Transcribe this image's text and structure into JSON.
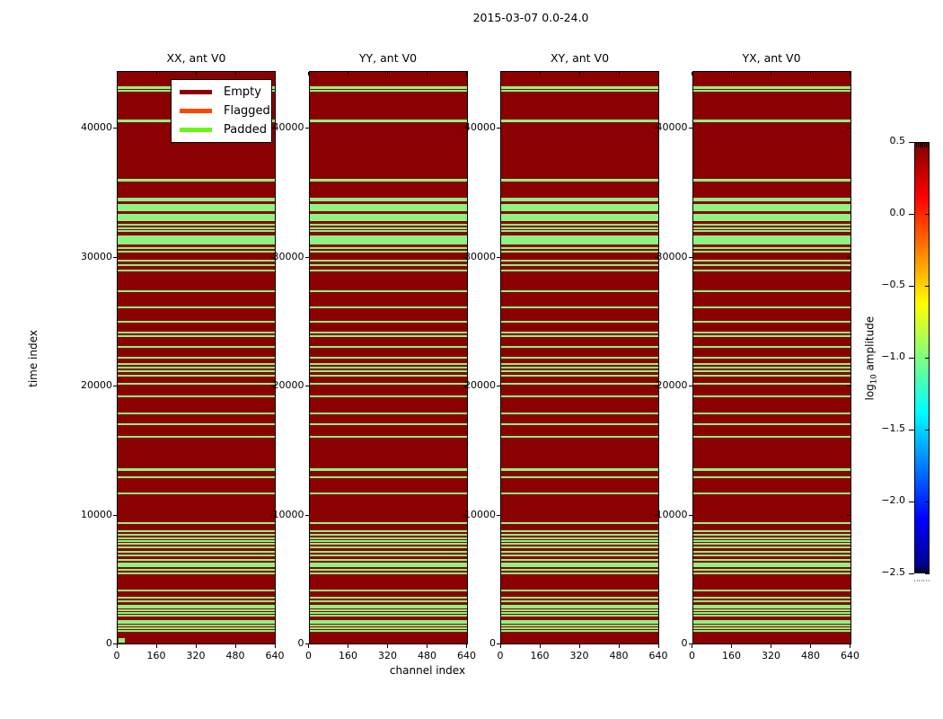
{
  "figure_title": "2015-03-07 0.0-24.0",
  "axis": {
    "xlabel": "channel index",
    "ylabel": "time index",
    "x_tick_labels": [
      "0",
      "160",
      "320",
      "480",
      "640"
    ],
    "y_tick_labels": [
      "0",
      "10000",
      "20000",
      "30000",
      "40000"
    ]
  },
  "legend": {
    "items": [
      {
        "label": "Empty",
        "color": "#8b0000"
      },
      {
        "label": "Flagged",
        "color": "#ff4500"
      },
      {
        "label": "Padded",
        "color": "#6ff31a"
      }
    ]
  },
  "colorbar": {
    "label_log": "log",
    "label_sub": "10",
    "label_rest": " amplitude",
    "tick_labels": [
      "0.5",
      "0.0",
      "−0.5",
      "−1.0",
      "−1.5",
      "−2.0",
      "−2.5"
    ]
  },
  "chart_data": {
    "type": "heatmap",
    "title": "2015-03-07 0.0-24.0",
    "panel_titles": [
      "XX, ant V0",
      "YY, ant V0",
      "XY, ant V0",
      "YX, ant V0"
    ],
    "xlabel": "channel index",
    "ylabel": "time index",
    "xlim": [
      0,
      640
    ],
    "ylim": [
      0,
      44460
    ],
    "x_ticks": [
      0,
      160,
      320,
      480,
      640
    ],
    "y_ticks": [
      0,
      10000,
      20000,
      30000,
      40000
    ],
    "legend_categories": [
      "Empty",
      "Flagged",
      "Padded"
    ],
    "colors": {
      "empty": "#8b0000",
      "flagged": "#ff4500",
      "padded_legend": "#6ff31a",
      "padded_stripe": "#8cf580"
    },
    "colorbar": {
      "label": "log10 amplitude",
      "range": [
        -2.5,
        0.5
      ],
      "ticks": [
        0.5,
        0.0,
        -0.5,
        -1.0,
        -1.5,
        -2.0,
        -2.5
      ],
      "colormap": "jet"
    },
    "note": "All four panels show the same padded-row pattern on an Empty (dark red) background",
    "padded_time_ranges": [
      [
        43150,
        43330
      ],
      [
        42900,
        43080
      ],
      [
        40560,
        40740
      ],
      [
        35930,
        36130
      ],
      [
        34360,
        34640
      ],
      [
        33590,
        34170
      ],
      [
        32890,
        33430
      ],
      [
        32480,
        32620
      ],
      [
        32250,
        32390
      ],
      [
        32010,
        32150
      ],
      [
        31030,
        31730
      ],
      [
        30660,
        30800
      ],
      [
        30380,
        30520
      ],
      [
        29690,
        29830
      ],
      [
        29340,
        29480
      ],
      [
        28940,
        29080
      ],
      [
        27360,
        27500
      ],
      [
        26090,
        26230
      ],
      [
        24970,
        25110
      ],
      [
        24110,
        24250
      ],
      [
        23830,
        23970
      ],
      [
        23020,
        23160
      ],
      [
        22180,
        22320
      ],
      [
        21670,
        21810
      ],
      [
        21390,
        21530
      ],
      [
        21090,
        21230
      ],
      [
        20780,
        20920
      ],
      [
        20160,
        20300
      ],
      [
        19160,
        19300
      ],
      [
        17840,
        17980
      ],
      [
        16960,
        17100
      ],
      [
        16030,
        16170
      ],
      [
        13440,
        13640
      ],
      [
        12840,
        12980
      ],
      [
        11570,
        11710
      ],
      [
        9290,
        9430
      ],
      [
        8660,
        8800
      ],
      [
        8360,
        8500
      ],
      [
        8130,
        8270
      ],
      [
        7900,
        8040
      ],
      [
        7670,
        7810
      ],
      [
        7390,
        7530
      ],
      [
        7040,
        7180
      ],
      [
        6810,
        6950
      ],
      [
        6460,
        6600
      ],
      [
        5940,
        6290
      ],
      [
        5640,
        5780
      ],
      [
        5410,
        5550
      ],
      [
        4020,
        4160
      ],
      [
        3480,
        3620
      ],
      [
        3250,
        3390
      ],
      [
        2860,
        3000
      ],
      [
        2700,
        2840
      ],
      [
        2510,
        2650
      ],
      [
        2320,
        2460
      ],
      [
        2110,
        2250
      ],
      [
        1690,
        1830
      ],
      [
        1510,
        1650
      ],
      [
        1300,
        1440
      ],
      [
        1110,
        1250
      ],
      [
        930,
        1070
      ]
    ],
    "panel1_corner_padded_block": {
      "time_range": [
        0,
        350
      ],
      "channel_range": [
        0,
        26
      ]
    }
  }
}
